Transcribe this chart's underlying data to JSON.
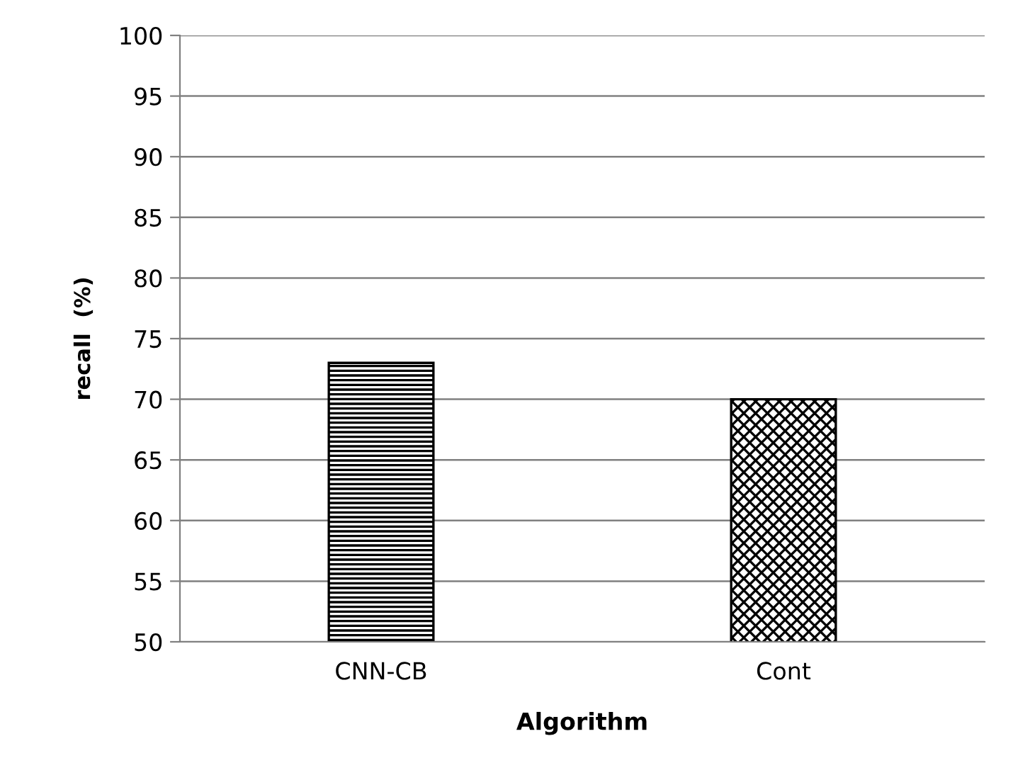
{
  "chart_data": {
    "type": "bar",
    "xlabel": "Algorithm",
    "ylabel": "recall  (%)",
    "categories": [
      "CNN-CB",
      "Cont"
    ],
    "values": [
      73,
      70
    ],
    "colors": [
      "#000000",
      "#000000"
    ],
    "ylim": [
      50,
      100
    ],
    "yticks": [
      50,
      55,
      60,
      65,
      70,
      75,
      80,
      85,
      90,
      95,
      100
    ],
    "grid": "y",
    "legend": false
  }
}
